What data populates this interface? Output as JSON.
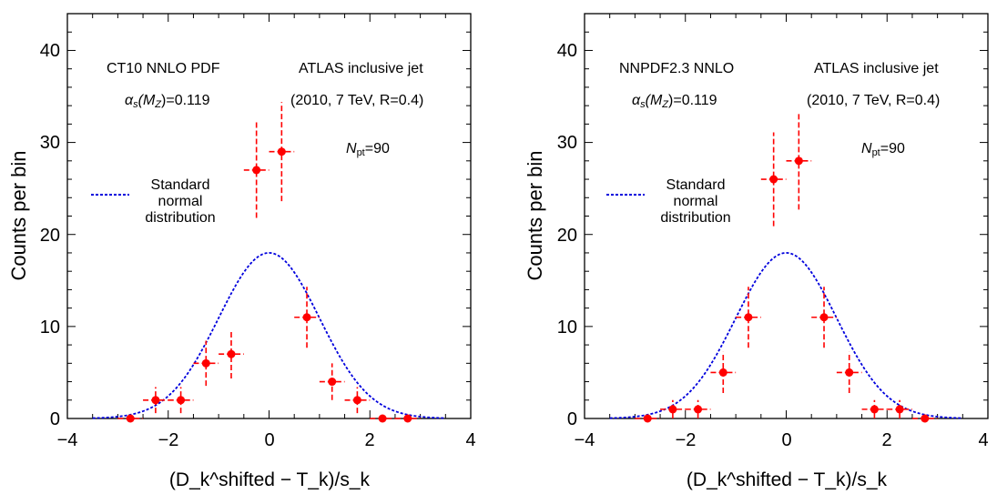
{
  "colors": {
    "data": "#ff0000",
    "curve": "#0000dd",
    "axis": "#000000"
  },
  "chart_data": [
    {
      "type": "scatter",
      "title": "",
      "xlabel": "(D_k^shifted − T_k)/s_k",
      "ylabel": "Counts per bin",
      "xlim": [
        -4,
        4
      ],
      "ylim": [
        0,
        44
      ],
      "xticks": [
        "−4",
        "−2",
        "0",
        "2",
        "4"
      ],
      "yticks": [
        "0",
        "10",
        "20",
        "30",
        "40"
      ],
      "annotations": {
        "pdf": "CT10 NNLO PDF",
        "alphas_prefix": "α",
        "alphas_s": "s",
        "alphas_mid": "(M",
        "alphas_z": "Z",
        "alphas_suffix": ")=0.119",
        "dataset": "ATLAS inclusive jet",
        "dataset_details": "(2010, 7 TeV, R=0.4)",
        "npt_n": "N",
        "npt_sub": "pt",
        "npt_value": "=90"
      },
      "legend": [
        "Standard",
        "normal",
        "distribution"
      ],
      "bin_width": 0.5,
      "x": [
        -2.75,
        -2.25,
        -1.75,
        -1.25,
        -0.75,
        -0.25,
        0.25,
        0.75,
        1.25,
        1.75,
        2.25,
        2.75
      ],
      "counts": [
        0,
        2,
        2,
        6,
        7,
        27,
        29,
        11,
        4,
        2,
        0,
        0
      ],
      "curve": {
        "name": "Standard normal distribution",
        "peak": 18,
        "mean": 0,
        "sigma": 1
      }
    },
    {
      "type": "scatter",
      "title": "",
      "xlabel": "(D_k^shifted − T_k)/s_k",
      "ylabel": "Counts per bin",
      "xlim": [
        -4,
        4
      ],
      "ylim": [
        0,
        44
      ],
      "xticks": [
        "−4",
        "−2",
        "0",
        "2",
        "4"
      ],
      "yticks": [
        "0",
        "10",
        "20",
        "30",
        "40"
      ],
      "annotations": {
        "pdf": "NNPDF2.3 NNLO",
        "alphas_prefix": "α",
        "alphas_s": "s",
        "alphas_mid": "(M",
        "alphas_z": "Z",
        "alphas_suffix": ")=0.119",
        "dataset": "ATLAS inclusive jet",
        "dataset_details": "(2010, 7 TeV, R=0.4)",
        "npt_n": "N",
        "npt_sub": "pt",
        "npt_value": "=90"
      },
      "legend": [
        "Standard",
        "normal",
        "distribution"
      ],
      "bin_width": 0.5,
      "x": [
        -2.75,
        -2.25,
        -1.75,
        -1.25,
        -0.75,
        -0.25,
        0.25,
        0.75,
        1.25,
        1.75,
        2.25,
        2.75
      ],
      "counts": [
        0,
        1,
        1,
        5,
        11,
        26,
        28,
        11,
        5,
        1,
        1,
        0
      ],
      "curve": {
        "name": "Standard normal distribution",
        "peak": 18,
        "mean": 0,
        "sigma": 1
      }
    }
  ]
}
